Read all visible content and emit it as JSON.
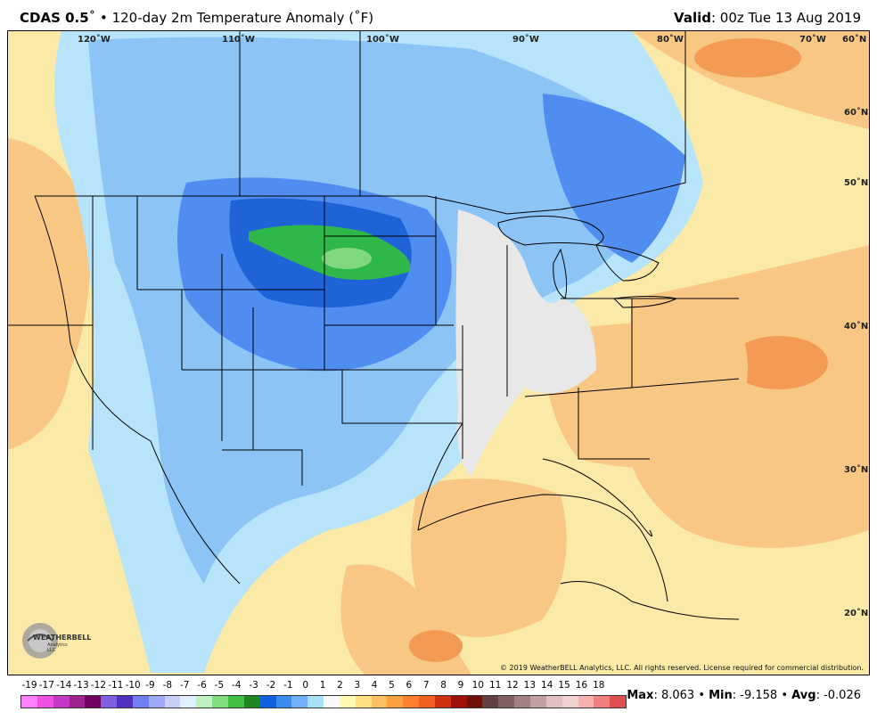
{
  "header": {
    "model": "CDAS 0.5",
    "degree": "˚",
    "bullet": "•",
    "description": "120-day 2m Temperature Anomaly (˚F)",
    "valid_label": "Valid",
    "valid_time": "00z Tue 13 Aug 2019"
  },
  "map": {
    "longitude_labels": [
      "120˚W",
      "110˚W",
      "100˚W",
      "90˚W",
      "80˚W",
      "70˚W",
      "60˚N"
    ],
    "latitude_labels": [
      "50˚N",
      "40˚N",
      "30˚N",
      "20˚N"
    ],
    "copyright": "© 2019 WeatherBELL Analytics, LLC. All rights reserved. License required for commercial distribution.",
    "logo_text": "WEATHERBELL",
    "logo_subtext": "Analytics LLC"
  },
  "legend": {
    "ticks": [
      "-19",
      "-17",
      "-14",
      "-13",
      "-12",
      "-11",
      "-10",
      "-9",
      "-8",
      "-7",
      "-6",
      "-5",
      "-4",
      "-3",
      "-2",
      "-1",
      "0",
      "1",
      "2",
      "3",
      "4",
      "5",
      "6",
      "7",
      "8",
      "9",
      "10",
      "11",
      "12",
      "13",
      "14",
      "15",
      "16",
      "18"
    ],
    "colors": [
      "#ff80ff",
      "#f050e0",
      "#c838c8",
      "#a02090",
      "#700060",
      "#8060e0",
      "#5030c0",
      "#7080f0",
      "#a0a8f8",
      "#c8d0f8",
      "#e0f0ff",
      "#c0f0c0",
      "#80e080",
      "#40c040",
      "#208820",
      "#1060e0",
      "#3c8cf0",
      "#70b0f8",
      "#a8e0f8",
      "#f8f8f8",
      "#fff8b0",
      "#ffe080",
      "#ffc060",
      "#ffa040",
      "#ff8030",
      "#f06020",
      "#d03010",
      "#a01008",
      "#701008",
      "#604040",
      "#806060",
      "#a08080",
      "#c0a0a0",
      "#e0c0c0",
      "#f0d0d0",
      "#f8b0b0",
      "#f08080",
      "#e05050"
    ]
  },
  "stats": {
    "max_label": "Max",
    "max_value": "8.063",
    "min_label": "Min",
    "min_value": "-9.158",
    "avg_label": "Avg",
    "avg_value": "-0.026",
    "sep": "•"
  },
  "colors": {
    "cold_deep": "#1f63d8",
    "cold": "#4f8ef0",
    "cool": "#8cc4f6",
    "cool_light": "#b8e4fb",
    "neutral": "#e8e8e8",
    "warm_light": "#fbe9a8",
    "warm": "#f8c783",
    "hot": "#f39a55",
    "very_cold_green": "#2fb84a"
  }
}
